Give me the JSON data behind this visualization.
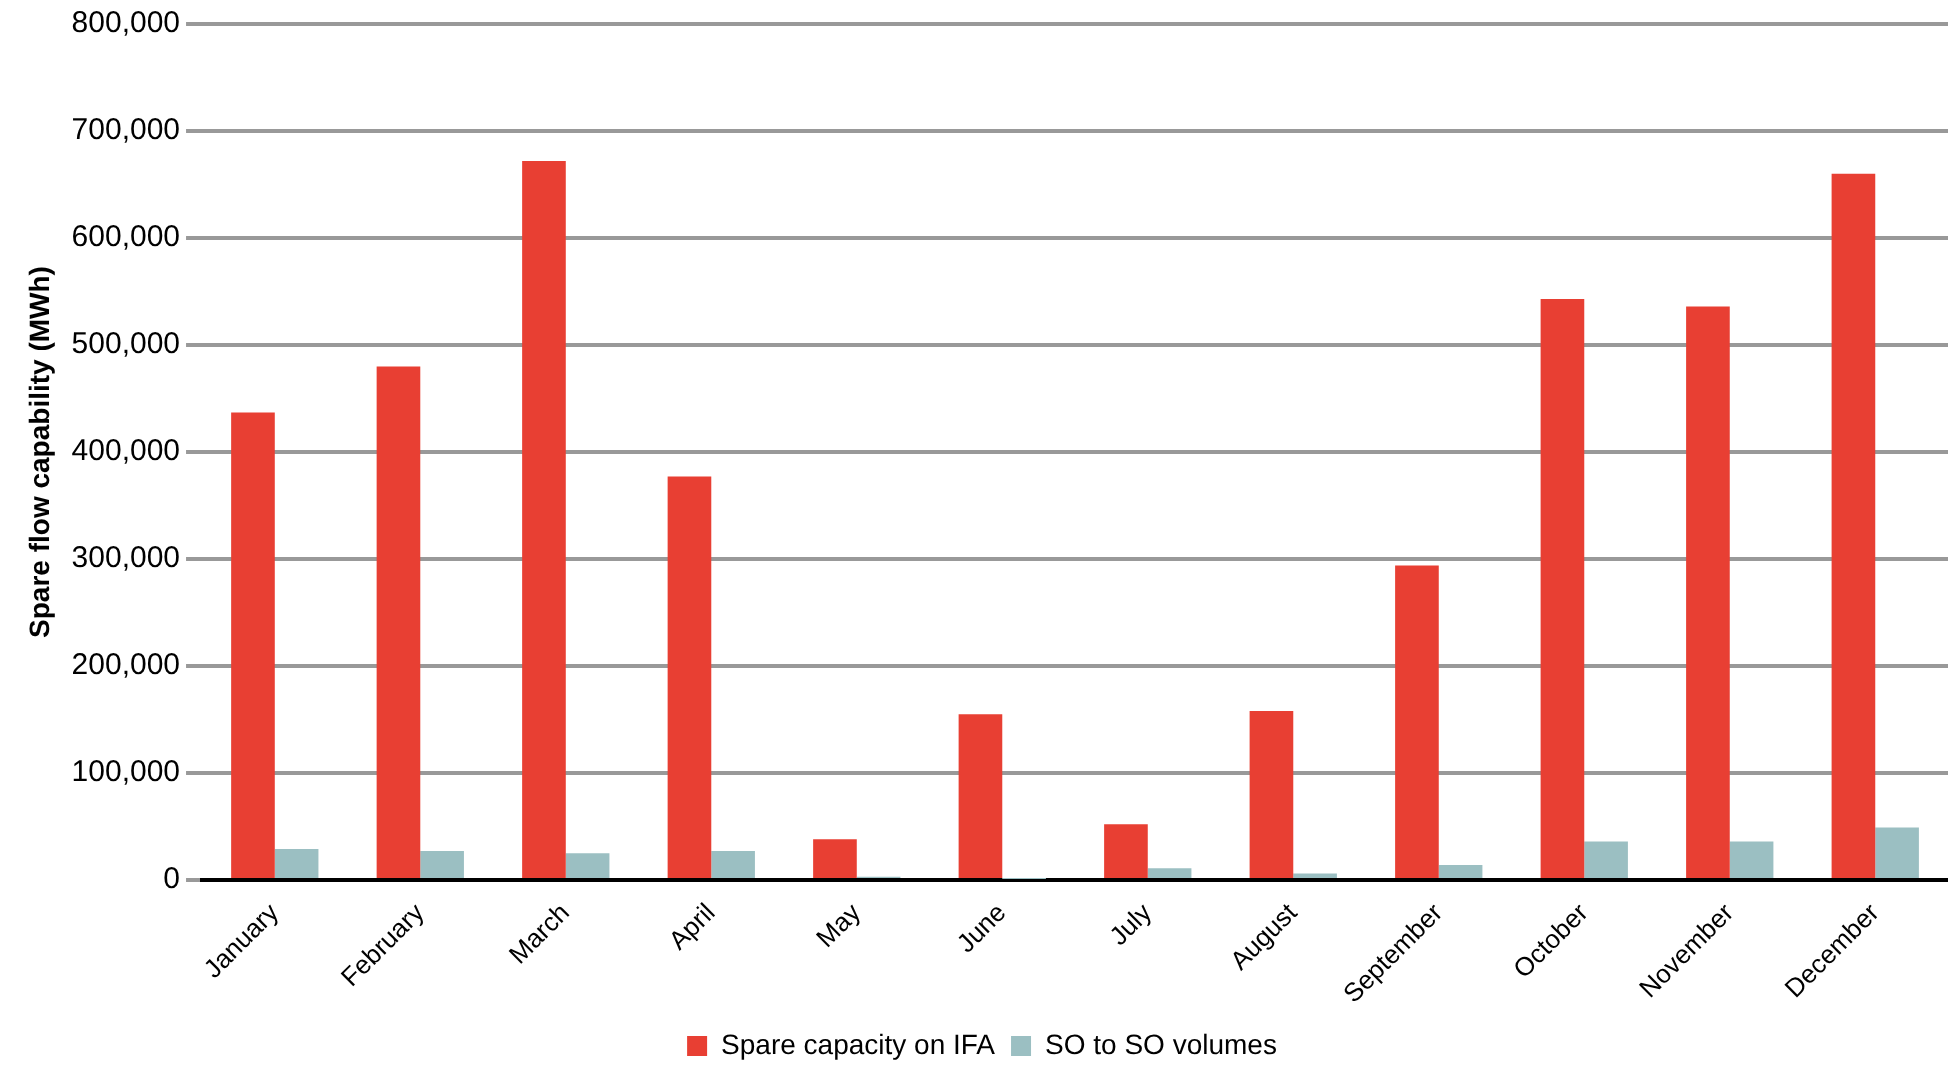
{
  "chart_data": {
    "type": "bar",
    "ylabel": "Spare flow capability (MWh)",
    "categories": [
      "January",
      "February",
      "March",
      "April",
      "May",
      "June",
      "July",
      "August",
      "September",
      "October",
      "November",
      "December"
    ],
    "series": [
      {
        "name": "Spare capacity on IFA",
        "color": "#e83f33",
        "values": [
          437000,
          480000,
          672000,
          377000,
          38000,
          155000,
          52000,
          158000,
          294000,
          543000,
          536000,
          660000
        ]
      },
      {
        "name": "SO to SO volumes",
        "color": "#9bbfc2",
        "values": [
          29000,
          27000,
          25000,
          27000,
          3000,
          1000,
          11000,
          6000,
          14000,
          36000,
          36000,
          49000
        ]
      }
    ],
    "ylim": [
      0,
      800000
    ],
    "yticks": [
      0,
      {
        "value": 100000,
        "label": "100,000"
      },
      {
        "value": 200000,
        "label": "200,000"
      },
      {
        "value": 300000,
        "label": "300,000"
      },
      {
        "value": 400000,
        "label": "400,000"
      },
      {
        "value": 500000,
        "label": "500,000"
      },
      {
        "value": 600000,
        "label": "600,000"
      },
      {
        "value": 700000,
        "label": "700,000"
      },
      {
        "value": 800000,
        "label": "800,000"
      }
    ],
    "grid": "y",
    "legend": "bottom"
  }
}
